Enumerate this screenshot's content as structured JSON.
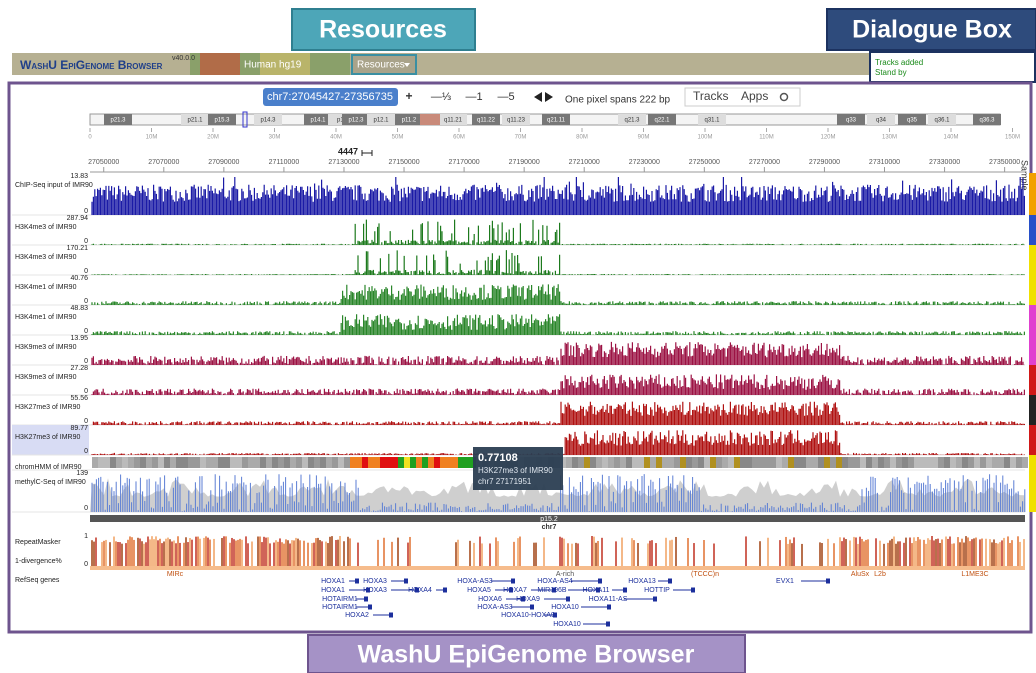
{
  "annotations": {
    "resources": "Resources",
    "dialogue_box": "Dialogue Box",
    "browser": "WashU EpiGenome Browser"
  },
  "header": {
    "logo": "WashU EpiGenome Browser",
    "version": "v40.0.0",
    "genome": "Human hg19",
    "menu": "Resources"
  },
  "dialogue": [
    "Tracks added",
    "Stand by"
  ],
  "navbar": {
    "coordinate": "chr7:27045427-27356735",
    "zoom": [
      "+",
      "—⅓",
      "—1",
      "—5"
    ],
    "pixel_span": "One pixel spans 222 bp",
    "menus": [
      "Tracks",
      "Apps"
    ]
  },
  "ideogram": [
    "p21.3",
    "p21.1",
    "p15.3",
    "p14.3",
    "p14.1",
    "p13",
    "p12.3",
    "p12.1",
    "p11.2",
    "q11.21",
    "q11.22",
    "q11.23",
    "q21.11",
    "q21.3",
    "q22.1",
    "q31.1",
    "q33",
    "q34",
    "q35",
    "q36.1",
    "q36.3"
  ],
  "chrom_ruler": [
    "0",
    "10M",
    "20M",
    "30M",
    "40M",
    "50M",
    "60M",
    "70M",
    "80M",
    "90M",
    "100M",
    "110M",
    "120M",
    "130M",
    "140M",
    "150M"
  ],
  "scale_bar": "4447",
  "coord_ticks": [
    27050000,
    27070000,
    27090000,
    27110000,
    27130000,
    27150000,
    27170000,
    27190000,
    27210000,
    27230000,
    27250000,
    27270000,
    27290000,
    27310000,
    27330000,
    27350000
  ],
  "tracks": [
    {
      "label": "ChIP-Seq input of IMR90",
      "max": 13.83,
      "min": 0
    },
    {
      "label": "H3K4me3 of IMR90",
      "max": 287.94,
      "min": 0
    },
    {
      "label": "H3K4me3 of IMR90",
      "max": 170.21,
      "min": 0
    },
    {
      "label": "H3K4me1 of IMR90",
      "max": 40.76,
      "min": 0
    },
    {
      "label": "H3K4me1 of IMR90",
      "max": 48.83,
      "min": 0
    },
    {
      "label": "H3K9me3 of IMR90",
      "max": 13.95,
      "min": 0
    },
    {
      "label": "H3K9me3 of IMR90",
      "max": 27.28,
      "min": 0
    },
    {
      "label": "H3K27me3 of IMR90",
      "max": 55.56,
      "min": 0
    },
    {
      "label": "H3K27me3 of IMR90",
      "max": 89.77,
      "min": 0
    },
    {
      "label": "chromHMM of IMR90"
    },
    {
      "label": "methylC-Seq of IMR90",
      "max": 139,
      "min": 0
    }
  ],
  "chromosome": {
    "band": "p15.2",
    "name": "chr7"
  },
  "repeats": {
    "labels": [
      "RepeatMasker",
      "1-divergence%"
    ],
    "max": 1,
    "min": 0,
    "families": [
      "MIRc",
      "A-rich",
      "(TCCC)n",
      "AluSx",
      "L2b",
      "L1ME3C"
    ]
  },
  "genes": {
    "label": "RefSeq genes",
    "names": [
      "HOXA1",
      "HOXA3",
      "HOXA-AS3",
      "HOXA-AS4",
      "HOXA13",
      "HOXA1",
      "HOXA3",
      "HOXA4",
      "HOXA5",
      "HOXA7",
      "MIR196B",
      "HOXA11",
      "HOTTIP",
      "EVX1",
      "HOTAIRM1",
      "HOXA6",
      "HOXA9",
      "HOXA11-AS",
      "HOTAIRM1",
      "HOXA-AS3",
      "HOXA10",
      "HOXA10-HOXA9",
      "HOXA2",
      "HOXA10"
    ]
  },
  "tooltip": {
    "value": 0.77108,
    "track": "H3K27me3 of IMR90",
    "position": "chr7 27171951"
  },
  "sample": "Sample"
}
